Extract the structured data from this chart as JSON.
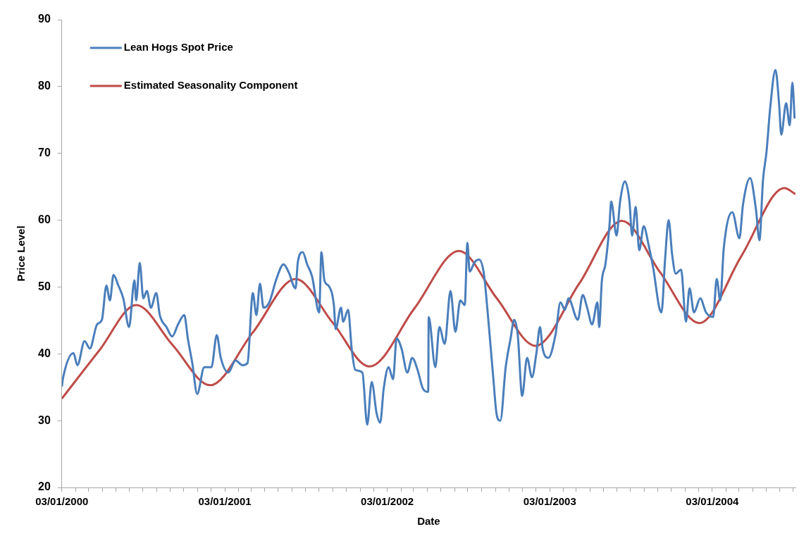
{
  "chart_data": {
    "type": "line",
    "xlabel": "Date",
    "ylabel": "Price Level",
    "legend": "top left",
    "ylim": [
      20,
      90
    ],
    "yticks": [
      20,
      30,
      40,
      50,
      60,
      70,
      80,
      90
    ],
    "xlim": [
      "2000-01-03",
      "2004-07-08"
    ],
    "xticks": [
      {
        "value": "2000-01-03",
        "label": "03/01/2000"
      },
      {
        "value": "2000-02-03",
        "label": null
      },
      {
        "value": "2000-03-03",
        "label": null
      },
      {
        "value": "2000-04-03",
        "label": null
      },
      {
        "value": "2000-05-03",
        "label": null
      },
      {
        "value": "2000-06-03",
        "label": null
      },
      {
        "value": "2000-07-03",
        "label": null
      },
      {
        "value": "2000-08-03",
        "label": null
      },
      {
        "value": "2000-09-03",
        "label": null
      },
      {
        "value": "2000-10-03",
        "label": null
      },
      {
        "value": "2000-11-03",
        "label": null
      },
      {
        "value": "2000-12-03",
        "label": null
      },
      {
        "value": "2001-01-03",
        "label": "03/01/2001"
      },
      {
        "value": "2001-02-03",
        "label": null
      },
      {
        "value": "2001-03-03",
        "label": null
      },
      {
        "value": "2001-04-03",
        "label": null
      },
      {
        "value": "2001-05-03",
        "label": null
      },
      {
        "value": "2001-06-03",
        "label": null
      },
      {
        "value": "2001-07-03",
        "label": null
      },
      {
        "value": "2001-08-03",
        "label": null
      },
      {
        "value": "2001-09-03",
        "label": null
      },
      {
        "value": "2001-10-03",
        "label": null
      },
      {
        "value": "2001-11-03",
        "label": null
      },
      {
        "value": "2001-12-03",
        "label": null
      },
      {
        "value": "2002-01-03",
        "label": "03/01/2002"
      },
      {
        "value": "2002-02-03",
        "label": null
      },
      {
        "value": "2002-03-03",
        "label": null
      },
      {
        "value": "2002-04-03",
        "label": null
      },
      {
        "value": "2002-05-03",
        "label": null
      },
      {
        "value": "2002-06-03",
        "label": null
      },
      {
        "value": "2002-07-03",
        "label": null
      },
      {
        "value": "2002-08-03",
        "label": null
      },
      {
        "value": "2002-09-03",
        "label": null
      },
      {
        "value": "2002-10-03",
        "label": null
      },
      {
        "value": "2002-11-03",
        "label": null
      },
      {
        "value": "2002-12-03",
        "label": null
      },
      {
        "value": "2003-01-03",
        "label": "03/01/2003"
      },
      {
        "value": "2003-02-03",
        "label": null
      },
      {
        "value": "2003-03-03",
        "label": null
      },
      {
        "value": "2003-04-03",
        "label": null
      },
      {
        "value": "2003-05-03",
        "label": null
      },
      {
        "value": "2003-06-03",
        "label": null
      },
      {
        "value": "2003-07-03",
        "label": null
      },
      {
        "value": "2003-08-03",
        "label": null
      },
      {
        "value": "2003-09-03",
        "label": null
      },
      {
        "value": "2003-10-03",
        "label": null
      },
      {
        "value": "2003-11-03",
        "label": null
      },
      {
        "value": "2003-12-03",
        "label": null
      },
      {
        "value": "2004-01-03",
        "label": "03/01/2004"
      },
      {
        "value": "2004-02-03",
        "label": null
      },
      {
        "value": "2004-03-03",
        "label": null
      },
      {
        "value": "2004-04-03",
        "label": null
      },
      {
        "value": "2004-05-03",
        "label": null
      },
      {
        "value": "2004-06-03",
        "label": null
      },
      {
        "value": "2004-07-03",
        "label": null
      }
    ],
    "series": [
      {
        "name": "Lean Hogs Spot Price",
        "color": "#4a7ebb",
        "x": [
          "2000-01-03",
          "2000-01-06",
          "2000-01-29",
          "2000-02-07",
          "2000-02-23",
          "2000-03-06",
          "2000-03-22",
          "2000-04-02",
          "2000-04-12",
          "2000-04-20",
          "2000-04-28",
          "2000-05-09",
          "2000-05-20",
          "2000-06-02",
          "2000-06-14",
          "2000-06-18",
          "2000-06-26",
          "2000-07-04",
          "2000-07-12",
          "2000-07-21",
          "2000-08-02",
          "2000-08-10",
          "2000-08-25",
          "2000-09-07",
          "2000-09-20",
          "2000-10-04",
          "2000-10-12",
          "2000-10-22",
          "2000-11-02",
          "2000-11-18",
          "2000-12-04",
          "2000-12-16",
          "2000-12-25",
          "2001-01-11",
          "2001-01-27",
          "2001-02-12",
          "2001-02-23",
          "2001-03-07",
          "2001-03-15",
          "2001-03-23",
          "2001-03-31",
          "2001-04-13",
          "2001-04-29",
          "2001-05-15",
          "2001-05-26",
          "2001-06-11",
          "2001-06-16",
          "2001-06-27",
          "2001-07-07",
          "2001-07-18",
          "2001-08-03",
          "2001-08-08",
          "2001-08-15",
          "2001-08-24",
          "2001-09-05",
          "2001-09-09",
          "2001-09-21",
          "2001-09-26",
          "2001-10-07",
          "2001-10-15",
          "2001-10-23",
          "2001-11-08",
          "2001-11-19",
          "2001-11-29",
          "2001-12-10",
          "2001-12-18",
          "2001-12-26",
          "2002-01-06",
          "2002-01-16",
          "2002-01-24",
          "2002-02-04",
          "2002-02-17",
          "2002-02-28",
          "2002-03-12",
          "2002-03-24",
          "2002-04-05",
          "2002-04-06",
          "2002-04-21",
          "2002-04-30",
          "2002-05-12",
          "2002-05-25",
          "2002-06-05",
          "2002-06-16",
          "2002-06-26",
          "2002-07-02",
          "2002-07-07",
          "2002-07-18",
          "2002-07-28",
          "2002-08-08",
          "2002-08-16",
          "2002-08-29",
          "2002-09-06",
          "2002-09-14",
          "2002-09-26",
          "2002-10-07",
          "2002-10-15",
          "2002-10-23",
          "2002-11-02",
          "2002-11-13",
          "2002-11-24",
          "2002-12-04",
          "2002-12-12",
          "2002-12-18",
          "2002-12-31",
          "2003-01-16",
          "2003-01-27",
          "2003-02-06",
          "2003-02-14",
          "2003-03-07",
          "2003-03-18",
          "2003-03-28",
          "2003-04-08",
          "2003-04-20",
          "2003-04-24",
          "2003-04-30",
          "2003-05-08",
          "2003-05-17",
          "2003-05-21",
          "2003-06-02",
          "2003-06-10",
          "2003-06-21",
          "2003-07-01",
          "2003-07-07",
          "2003-07-15",
          "2003-07-23",
          "2003-08-02",
          "2003-08-13",
          "2003-08-24",
          "2003-09-06",
          "2003-09-11",
          "2003-09-19",
          "2003-09-27",
          "2003-10-05",
          "2003-10-13",
          "2003-10-25",
          "2003-11-05",
          "2003-11-13",
          "2003-11-23",
          "2003-12-07",
          "2003-12-20",
          "2004-01-05",
          "2004-01-13",
          "2004-01-21",
          "2004-01-29",
          "2004-02-17",
          "2004-03-04",
          "2004-03-12",
          "2004-03-28",
          "2004-04-10",
          "2004-04-18",
          "2004-04-26",
          "2004-05-04",
          "2004-05-12",
          "2004-05-24",
          "2004-06-01",
          "2004-06-06",
          "2004-06-17",
          "2004-06-25",
          "2004-07-01",
          "2004-07-06"
        ],
        "values": [
          35.1,
          36.5,
          40.1,
          38.3,
          41.9,
          40.8,
          44.4,
          45.1,
          50.2,
          48.0,
          51.8,
          50.2,
          48.3,
          44.0,
          51.0,
          48.0,
          53.6,
          48.3,
          49.4,
          46.9,
          49.1,
          45.8,
          44.0,
          42.6,
          44.4,
          45.8,
          42.3,
          38.6,
          34.0,
          38.0,
          38.0,
          42.8,
          39.4,
          37.2,
          39.0,
          38.3,
          38.6,
          49.1,
          45.8,
          50.5,
          46.9,
          47.7,
          51.2,
          53.4,
          52.3,
          49.8,
          53.7,
          55.2,
          53.4,
          51.6,
          46.2,
          55.2,
          50.9,
          50.2,
          47.3,
          43.7,
          46.9,
          44.8,
          46.6,
          40.8,
          37.6,
          37.2,
          29.4,
          35.8,
          31.1,
          29.7,
          34.8,
          38.0,
          36.2,
          42.3,
          40.8,
          37.2,
          39.4,
          37.6,
          34.8,
          34.3,
          45.5,
          38.0,
          44.0,
          41.5,
          49.4,
          43.3,
          48.0,
          47.3,
          56.6,
          52.3,
          53.7,
          54.1,
          52.0,
          46.6,
          36.5,
          30.8,
          30.0,
          38.0,
          42.3,
          45.1,
          42.9,
          33.7,
          39.4,
          36.5,
          40.1,
          44.0,
          40.8,
          39.4,
          42.9,
          47.7,
          46.6,
          48.3,
          45.1,
          48.8,
          46.9,
          44.4,
          47.7,
          44.0,
          50.9,
          53.4,
          59.1,
          62.8,
          57.7,
          62.8,
          65.8,
          62.8,
          57.7,
          62.0,
          55.5,
          59.1,
          56.3,
          52.6,
          46.9,
          46.2,
          54.1,
          60.0,
          54.8,
          52.0,
          52.6,
          44.8,
          49.8,
          46.2,
          48.3,
          46.2,
          45.5,
          51.2,
          48.0,
          55.9,
          61.2,
          57.3,
          62.3,
          66.3,
          61.7,
          57.0,
          66.0,
          70.3,
          76.7,
          82.5,
          77.5,
          72.8,
          77.5,
          74.2,
          80.6,
          75.2
        ]
      },
      {
        "name": "Estimated Seasonality Component",
        "color": "#be4b48",
        "x": [
          "2000-01-03",
          "2000-03-27",
          "2000-06-18",
          "2000-09-08",
          "2000-12-01",
          "2001-03-07",
          "2001-06-11",
          "2001-09-03",
          "2001-11-24",
          "2002-03-05",
          "2002-06-13",
          "2002-09-06",
          "2002-12-02",
          "2003-03-10",
          "2003-06-14",
          "2003-09-08",
          "2003-12-05",
          "2004-03-09",
          "2004-06-13",
          "2004-07-08"
        ],
        "values": [
          33.3,
          40.5,
          47.3,
          41.3,
          35.3,
          43.2,
          51.2,
          44.6,
          38.1,
          46.8,
          55.4,
          48.3,
          41.2,
          50.5,
          59.9,
          52.2,
          44.6,
          54.7,
          64.8,
          63.9
        ]
      }
    ]
  }
}
